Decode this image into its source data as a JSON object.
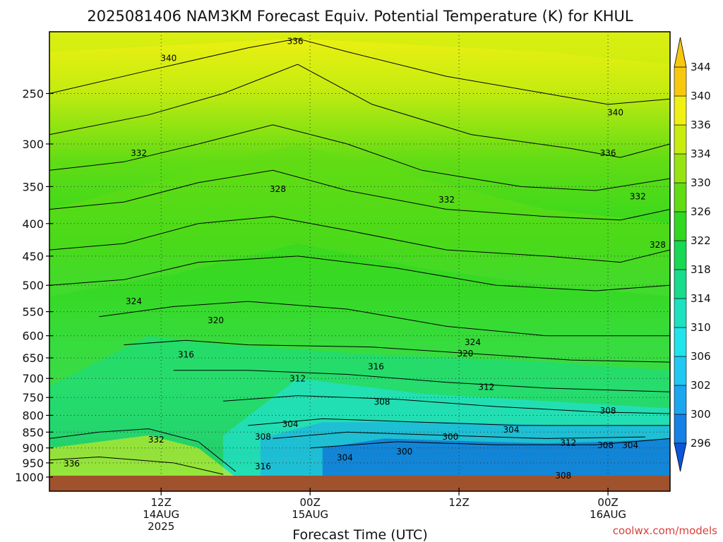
{
  "chart_data": {
    "type": "heatmap",
    "title": "2025081406 NAM3KM Forecast Equiv. Potential Temperature (K) for KHUL",
    "xlabel": "Forecast Time (UTC)",
    "ylabel": "",
    "y_scale": "log",
    "y_reversed": true,
    "ylim": [
      1000,
      200
    ],
    "y_ticks": [
      250,
      300,
      350,
      400,
      450,
      500,
      550,
      600,
      650,
      700,
      750,
      800,
      850,
      900,
      950,
      1000
    ],
    "x_ticks": [
      {
        "line1": "12Z",
        "line2": "14AUG",
        "line3": "2025"
      },
      {
        "line1": "00Z",
        "line2": "15AUG",
        "line3": ""
      },
      {
        "line1": "12Z",
        "line2": "",
        "line3": ""
      },
      {
        "line1": "00Z",
        "line2": "16AUG",
        "line3": ""
      },
      {
        "line1": "12Z",
        "line2": "",
        "line3": ""
      }
    ],
    "grid": true,
    "colorbar": {
      "levels": [
        296,
        300,
        302,
        306,
        310,
        314,
        318,
        322,
        326,
        330,
        334,
        336,
        340,
        344
      ],
      "colors": [
        "#0a55d8",
        "#1580e6",
        "#1ca6ef",
        "#20c8f2",
        "#20e4ec",
        "#1ce2c0",
        "#16dc8c",
        "#18d854",
        "#30d820",
        "#62dc14",
        "#98e412",
        "#c8ec10",
        "#f0f012",
        "#f8c80e"
      ]
    },
    "contour_labels": [
      {
        "text": "336",
        "x": 19.8,
        "p": 207
      },
      {
        "text": "340",
        "x": 9.6,
        "p": 220
      },
      {
        "text": "340",
        "x": 45.6,
        "p": 268
      },
      {
        "text": "336",
        "x": 45.0,
        "p": 310
      },
      {
        "text": "332",
        "x": 7.2,
        "p": 310
      },
      {
        "text": "328",
        "x": 18.4,
        "p": 353
      },
      {
        "text": "332",
        "x": 32.0,
        "p": 367
      },
      {
        "text": "332",
        "x": 47.4,
        "p": 363
      },
      {
        "text": "328",
        "x": 49.0,
        "p": 432
      },
      {
        "text": "324",
        "x": 6.8,
        "p": 530
      },
      {
        "text": "320",
        "x": 13.4,
        "p": 568
      },
      {
        "text": "324",
        "x": 34.1,
        "p": 614
      },
      {
        "text": "316",
        "x": 11.0,
        "p": 642
      },
      {
        "text": "320",
        "x": 33.5,
        "p": 640
      },
      {
        "text": "316",
        "x": 26.3,
        "p": 671
      },
      {
        "text": "312",
        "x": 20.0,
        "p": 701
      },
      {
        "text": "312",
        "x": 35.2,
        "p": 722
      },
      {
        "text": "308",
        "x": 26.8,
        "p": 762
      },
      {
        "text": "308",
        "x": 45.0,
        "p": 787
      },
      {
        "text": "304",
        "x": 19.4,
        "p": 826
      },
      {
        "text": "304",
        "x": 37.2,
        "p": 843
      },
      {
        "text": "308",
        "x": 17.2,
        "p": 865
      },
      {
        "text": "300",
        "x": 32.3,
        "p": 865
      },
      {
        "text": "332",
        "x": 8.6,
        "p": 873
      },
      {
        "text": "312",
        "x": 41.8,
        "p": 884
      },
      {
        "text": "308",
        "x": 44.8,
        "p": 892
      },
      {
        "text": "304",
        "x": 46.8,
        "p": 892
      },
      {
        "text": "300",
        "x": 28.6,
        "p": 912
      },
      {
        "text": "304",
        "x": 23.8,
        "p": 932
      },
      {
        "text": "336",
        "x": 1.8,
        "p": 953
      },
      {
        "text": "316",
        "x": 17.2,
        "p": 963
      },
      {
        "text": "308",
        "x": 41.4,
        "p": 995
      }
    ]
  },
  "credit": "coolwx.com/models"
}
